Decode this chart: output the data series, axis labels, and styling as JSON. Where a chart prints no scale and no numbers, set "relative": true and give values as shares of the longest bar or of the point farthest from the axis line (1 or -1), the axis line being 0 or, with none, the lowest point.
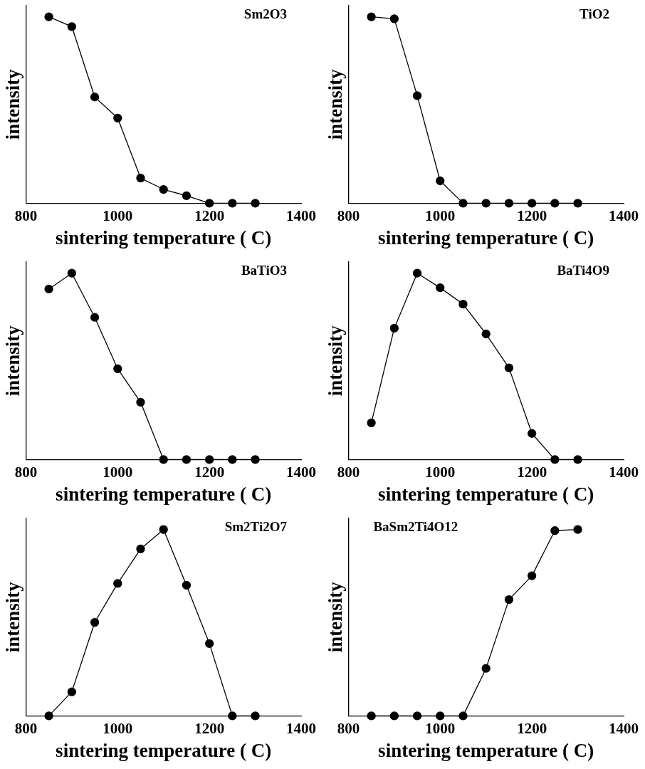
{
  "chart_data": [
    {
      "type": "line",
      "title": "Sm2O3",
      "xlabel": "sintering temperature ( C)",
      "ylabel": "intensity",
      "x": [
        850,
        900,
        950,
        1000,
        1050,
        1100,
        1150,
        1200,
        1250,
        1300
      ],
      "values": [
        1,
        0.948,
        0.57,
        0.457,
        0.135,
        0.074,
        0.04,
        0,
        0,
        0
      ],
      "color": "#000000",
      "marker": "circle",
      "relative": true,
      "xlim": [
        800,
        1400
      ],
      "xticks": [
        800,
        1000,
        1200,
        1400
      ]
    },
    {
      "type": "line",
      "title": "TiO2",
      "xlabel": "sintering temperature ( C)",
      "ylabel": "intensity",
      "x": [
        850,
        900,
        950,
        1000,
        1050,
        1100,
        1150,
        1200,
        1250,
        1300
      ],
      "values": [
        1,
        0.99,
        0.577,
        0.12,
        0,
        0,
        0,
        0,
        0,
        0
      ],
      "color": "#000000",
      "marker": "circle",
      "relative": true,
      "xlim": [
        800,
        1400
      ],
      "xticks": [
        800,
        1000,
        1200,
        1400
      ]
    },
    {
      "type": "line",
      "title": "BaTiO3",
      "xlabel": "sintering temperature ( C)",
      "ylabel": "intensity",
      "x": [
        850,
        900,
        950,
        1000,
        1050,
        1100,
        1150,
        1200,
        1250,
        1300
      ],
      "values": [
        0.915,
        1,
        0.763,
        0.487,
        0.308,
        0,
        0,
        0,
        0,
        0
      ],
      "color": "#000000",
      "marker": "circle",
      "relative": true,
      "xlim": [
        800,
        1400
      ],
      "xticks": [
        800,
        1000,
        1200,
        1400
      ]
    },
    {
      "type": "line",
      "title": "BaTi4O9",
      "xlabel": "sintering temperature ( C)",
      "ylabel": "intensity",
      "x": [
        850,
        900,
        950,
        1000,
        1050,
        1100,
        1150,
        1200,
        1250,
        1300
      ],
      "values": [
        0.197,
        0.705,
        1,
        0.922,
        0.834,
        0.674,
        0.492,
        0.14,
        0,
        0
      ],
      "color": "#000000",
      "marker": "circle",
      "relative": true,
      "xlim": [
        800,
        1400
      ],
      "xticks": [
        800,
        1000,
        1200,
        1400
      ]
    },
    {
      "type": "line",
      "title": "Sm2Ti2O7",
      "xlabel": "sintering temperature ( C)",
      "ylabel": "intensity",
      "x": [
        850,
        900,
        950,
        1000,
        1050,
        1100,
        1150,
        1200,
        1250,
        1300
      ],
      "values": [
        0,
        0.129,
        0.502,
        0.711,
        0.896,
        1,
        0.701,
        0.388,
        0,
        0
      ],
      "color": "#000000",
      "marker": "circle",
      "relative": true,
      "xlim": [
        800,
        1400
      ],
      "xticks": [
        800,
        1000,
        1200,
        1400
      ]
    },
    {
      "type": "line",
      "title": "BaSm2Ti4O12",
      "xlabel": "sintering temperature ( C)",
      "ylabel": "intensity",
      "x": [
        850,
        900,
        950,
        1000,
        1050,
        1100,
        1150,
        1200,
        1250,
        1300
      ],
      "values": [
        0,
        0,
        0,
        0,
        0,
        0.255,
        0.624,
        0.752,
        0.994,
        1
      ],
      "color": "#000000",
      "marker": "circle",
      "relative": true,
      "xlim": [
        800,
        1400
      ],
      "xticks": [
        800,
        1000,
        1200,
        1400
      ]
    }
  ]
}
